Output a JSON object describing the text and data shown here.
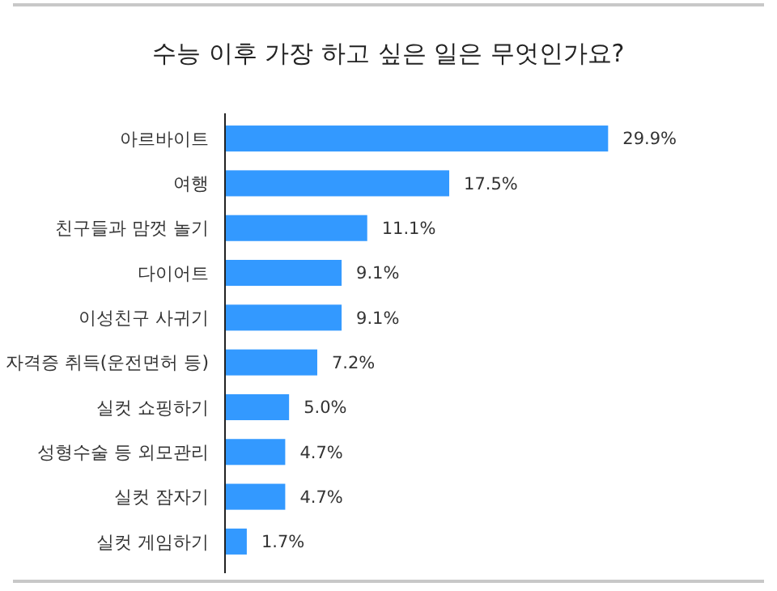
{
  "chart_data": {
    "type": "bar",
    "orientation": "horizontal",
    "title": "수능 이후 가장 하고 싶은 일은 무엇인가요?",
    "categories": [
      "아르바이트",
      "여행",
      "친구들과 맘껏 놀기",
      "다이어트",
      "이성친구 사귀기",
      "자격증 취득(운전면허 등)",
      "실컷 쇼핑하기",
      "성형수술 등 외모관리",
      "실컷 잠자기",
      "실컷 게임하기"
    ],
    "values": [
      29.9,
      17.5,
      11.1,
      9.1,
      9.1,
      7.2,
      5.0,
      4.7,
      4.7,
      1.7
    ],
    "value_labels": [
      "29.9%",
      "17.5%",
      "11.1%",
      "9.1%",
      "9.1%",
      "7.2%",
      "5.0%",
      "4.7%",
      "4.7%",
      "1.7%"
    ],
    "color": "#3399ff"
  }
}
